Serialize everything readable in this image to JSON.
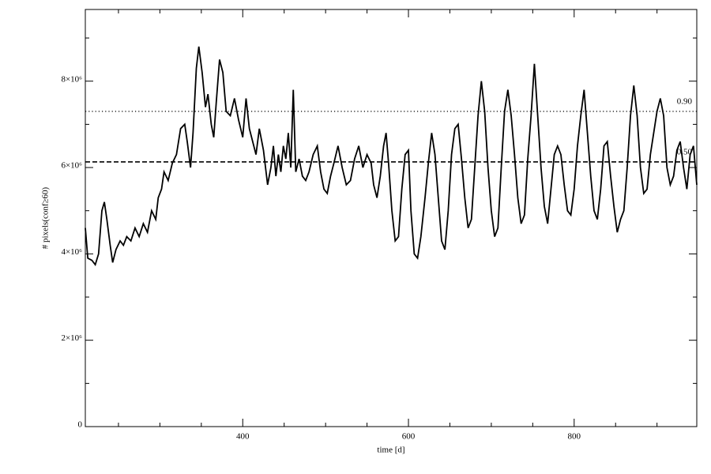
{
  "chart_data": {
    "type": "line",
    "x_label": "time [d]",
    "y_label": "# pixels(conf≥60)",
    "color": "#000000",
    "xlim": [
      210,
      948
    ],
    "ylim": [
      0,
      9660000
    ],
    "xticks": [
      400,
      600,
      800
    ],
    "x_minor_ticks": [
      250,
      300,
      350,
      450,
      500,
      550,
      650,
      700,
      750,
      850,
      900
    ],
    "yticks": [
      0,
      {
        "value": 2000000,
        "label": "2×10⁶"
      },
      {
        "value": 4000000,
        "label": "4×10⁶"
      },
      {
        "value": 6000000,
        "label": "6×10⁶"
      },
      {
        "value": 8000000,
        "label": "8×10⁶"
      }
    ],
    "y_minor_ticks": [
      1000000,
      3000000,
      5000000,
      7000000,
      9000000
    ],
    "reference_lines": [
      {
        "value": 7300000,
        "label": "0.90",
        "style": "dotted"
      },
      {
        "value": 6130000,
        "label": "0.50",
        "style": "dashed"
      }
    ],
    "x": [
      210,
      213,
      218,
      222,
      226,
      230,
      233,
      236,
      240,
      243,
      247,
      252,
      256,
      260,
      265,
      270,
      275,
      280,
      285,
      290,
      295,
      298,
      302,
      305,
      310,
      315,
      320,
      325,
      330,
      333,
      337,
      340,
      344,
      347,
      351,
      355,
      358,
      362,
      365,
      368,
      372,
      376,
      380,
      385,
      390,
      395,
      400,
      404,
      408,
      412,
      416,
      420,
      425,
      430,
      434,
      437,
      440,
      443,
      446,
      449,
      452,
      455,
      458,
      461,
      464,
      468,
      472,
      476,
      480,
      485,
      490,
      494,
      498,
      502,
      506,
      510,
      515,
      520,
      525,
      530,
      535,
      540,
      545,
      550,
      555,
      558,
      562,
      566,
      570,
      573,
      576,
      580,
      584,
      588,
      592,
      596,
      600,
      603,
      607,
      611,
      615,
      620,
      624,
      628,
      632,
      636,
      640,
      644,
      648,
      652,
      656,
      660,
      664,
      668,
      672,
      676,
      680,
      684,
      688,
      692,
      696,
      700,
      704,
      708,
      712,
      716,
      720,
      724,
      728,
      732,
      736,
      740,
      744,
      748,
      752,
      756,
      760,
      764,
      768,
      772,
      776,
      780,
      784,
      788,
      792,
      796,
      800,
      804,
      808,
      812,
      816,
      820,
      824,
      828,
      832,
      836,
      840,
      844,
      848,
      852,
      856,
      860,
      864,
      868,
      872,
      876,
      880,
      884,
      888,
      892,
      896,
      900,
      904,
      908,
      912,
      916,
      920,
      924,
      928,
      932,
      936,
      940,
      944,
      948
    ],
    "values": [
      4600000,
      3900000,
      3850000,
      3750000,
      4000000,
      5000000,
      5200000,
      4800000,
      4200000,
      3800000,
      4100000,
      4300000,
      4200000,
      4400000,
      4300000,
      4600000,
      4400000,
      4700000,
      4500000,
      5000000,
      4800000,
      5300000,
      5500000,
      5900000,
      5700000,
      6100000,
      6300000,
      6900000,
      7000000,
      6600000,
      6000000,
      6800000,
      8300000,
      8800000,
      8200000,
      7400000,
      7700000,
      7000000,
      6700000,
      7500000,
      8500000,
      8200000,
      7300000,
      7200000,
      7600000,
      7100000,
      6700000,
      7600000,
      6900000,
      6600000,
      6300000,
      6900000,
      6400000,
      5600000,
      6000000,
      6500000,
      5800000,
      6300000,
      5900000,
      6500000,
      6200000,
      6800000,
      6000000,
      7800000,
      5900000,
      6200000,
      5800000,
      5700000,
      5900000,
      6300000,
      6500000,
      5900000,
      5500000,
      5400000,
      5800000,
      6100000,
      6500000,
      6000000,
      5600000,
      5700000,
      6200000,
      6500000,
      6000000,
      6300000,
      6100000,
      5600000,
      5300000,
      5800000,
      6500000,
      6800000,
      6100000,
      5000000,
      4300000,
      4400000,
      5500000,
      6300000,
      6400000,
      5000000,
      4000000,
      3900000,
      4400000,
      5300000,
      6100000,
      6800000,
      6300000,
      5300000,
      4300000,
      4100000,
      5000000,
      6300000,
      6900000,
      7000000,
      6200000,
      5300000,
      4600000,
      4800000,
      6000000,
      7200000,
      8000000,
      7300000,
      6000000,
      5000000,
      4400000,
      4600000,
      6000000,
      7300000,
      7800000,
      7200000,
      6300000,
      5300000,
      4700000,
      4900000,
      6200000,
      7200000,
      8400000,
      7200000,
      6000000,
      5100000,
      4700000,
      5500000,
      6300000,
      6500000,
      6300000,
      5600000,
      5000000,
      4900000,
      5500000,
      6500000,
      7200000,
      7800000,
      6800000,
      5800000,
      5000000,
      4800000,
      5500000,
      6500000,
      6600000,
      5800000,
      5100000,
      4500000,
      4800000,
      5000000,
      6000000,
      7200000,
      7900000,
      7200000,
      6000000,
      5400000,
      5500000,
      6300000,
      6800000,
      7300000,
      7600000,
      7200000,
      6000000,
      5600000,
      5800000,
      6400000,
      6600000,
      6000000,
      5500000,
      6300000,
      6500000,
      5600000
    ]
  }
}
